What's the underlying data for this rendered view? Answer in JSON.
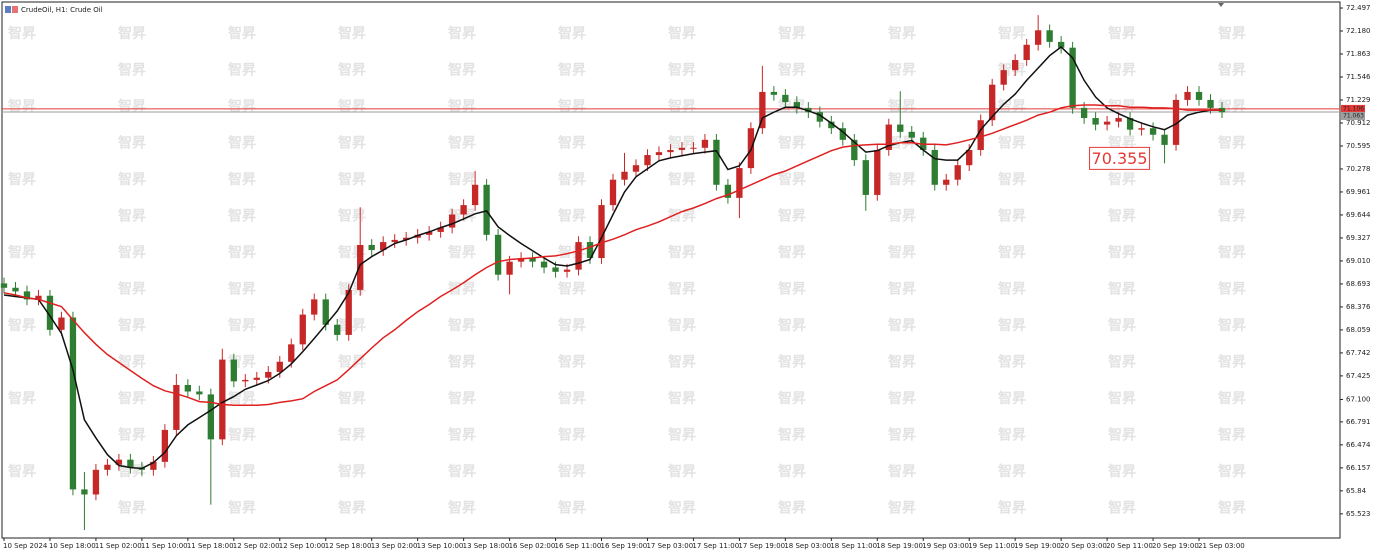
{
  "chart_data": {
    "type": "candlestick",
    "title": "CrudeOil, H1: Crude Oil",
    "watermark": "智昇",
    "categories": [
      "10 Sep 2024",
      null,
      null,
      null,
      "10 Sep 18:00",
      null,
      null,
      null,
      "11 Sep 02:00",
      null,
      null,
      null,
      "11 Sep 10:00",
      null,
      null,
      null,
      "11 Sep 18:00",
      null,
      null,
      null,
      "12 Sep 02:00",
      null,
      null,
      null,
      "12 Sep 10:00",
      null,
      null,
      null,
      "12 Sep 18:00",
      null,
      null,
      null,
      "13 Sep 02:00",
      null,
      null,
      null,
      "13 Sep 10:00",
      null,
      null,
      null,
      "13 Sep 18:00",
      null,
      null,
      null,
      "16 Sep 02:00",
      null,
      null,
      null,
      "16 Sep 11:00",
      null,
      null,
      null,
      "16 Sep 19:00",
      null,
      null,
      null,
      "17 Sep 03:00",
      null,
      null,
      null,
      "17 Sep 11:00",
      null,
      null,
      null,
      "17 Sep 19:00",
      null,
      null,
      null,
      "18 Sep 03:00",
      null,
      null,
      null,
      "18 Sep 11:00",
      null,
      null,
      null,
      "18 Sep 19:00",
      null,
      null,
      null,
      "19 Sep 03:00",
      null,
      null,
      null,
      "19 Sep 11:00",
      null,
      null,
      null,
      "19 Sep 19:00",
      null,
      null,
      null,
      "20 Sep 03:00",
      null,
      null,
      null,
      "20 Sep 11:00",
      null,
      null,
      null,
      "20 Sep 19:00",
      null,
      null,
      null,
      "21 Sep 03:00",
      null,
      null
    ],
    "open": [
      68.7,
      68.64,
      68.59,
      68.48,
      68.53,
      68.06,
      68.23,
      65.86,
      65.79,
      66.13,
      66.2,
      66.27,
      66.16,
      66.13,
      66.24,
      66.68,
      67.3,
      67.21,
      67.17,
      66.55,
      67.65,
      67.35,
      67.37,
      67.4,
      67.48,
      67.62,
      67.86,
      68.27,
      68.48,
      68.13,
      67.99,
      68.61,
      69.23,
      69.16,
      69.27,
      69.3,
      69.33,
      69.37,
      69.41,
      69.47,
      69.65,
      69.78,
      70.06,
      69.37,
      68.82,
      69.0,
      69.05,
      69.0,
      68.92,
      68.86,
      68.89,
      69.27,
      69.05,
      69.78,
      70.13,
      70.24,
      70.33,
      70.47,
      70.51,
      70.54,
      70.57,
      70.57,
      70.68,
      70.06,
      69.88,
      70.29,
      70.84,
      71.34,
      71.3,
      71.2,
      71.12,
      71.06,
      70.93,
      70.84,
      70.68,
      70.4,
      69.92,
      70.54,
      70.89,
      70.79,
      70.71,
      70.54,
      70.06,
      70.13,
      70.33,
      70.54,
      70.95,
      71.44,
      71.64,
      71.78,
      71.99,
      72.19,
      72.03,
      71.95,
      71.12,
      70.98,
      70.89,
      70.93,
      70.98,
      70.82,
      70.84,
      70.75,
      70.61,
      71.23,
      71.34,
      71.23,
      71.12
    ],
    "high": [
      68.78,
      68.72,
      68.67,
      68.61,
      68.61,
      68.31,
      68.31,
      66.1,
      66.21,
      66.28,
      66.35,
      66.35,
      66.24,
      66.32,
      66.76,
      67.45,
      67.38,
      67.29,
      67.25,
      67.8,
      67.73,
      67.45,
      67.48,
      67.56,
      67.7,
      67.94,
      68.35,
      68.56,
      68.56,
      68.21,
      68.69,
      69.75,
      69.31,
      69.35,
      69.38,
      69.41,
      69.45,
      69.49,
      69.55,
      69.73,
      69.86,
      70.25,
      70.14,
      69.45,
      69.08,
      69.13,
      69.13,
      69.08,
      69.0,
      68.97,
      69.35,
      69.35,
      69.86,
      70.21,
      70.5,
      70.41,
      70.55,
      70.59,
      70.62,
      70.65,
      70.65,
      70.76,
      70.76,
      70.14,
      70.37,
      70.92,
      71.7,
      71.42,
      71.38,
      71.28,
      71.2,
      71.14,
      71.01,
      70.92,
      70.76,
      70.48,
      70.62,
      70.97,
      71.35,
      70.87,
      70.79,
      70.62,
      70.21,
      70.41,
      70.62,
      71.03,
      71.52,
      71.72,
      71.86,
      72.07,
      72.4,
      72.27,
      72.11,
      72.03,
      71.2,
      71.06,
      71.01,
      71.06,
      71.06,
      70.92,
      70.92,
      70.83,
      71.31,
      71.42,
      71.42,
      71.31,
      71.2
    ],
    "low": [
      68.56,
      68.51,
      68.4,
      68.4,
      67.98,
      67.98,
      65.78,
      65.3,
      65.71,
      66.05,
      66.12,
      66.08,
      66.05,
      66.05,
      66.16,
      66.6,
      67.13,
      67.09,
      65.65,
      66.47,
      67.27,
      67.27,
      67.29,
      67.32,
      67.4,
      67.54,
      67.78,
      68.19,
      68.05,
      67.91,
      67.91,
      68.53,
      69.08,
      69.08,
      69.19,
      69.22,
      69.25,
      69.29,
      69.33,
      69.39,
      69.57,
      69.7,
      69.29,
      68.74,
      68.55,
      68.92,
      68.92,
      68.84,
      68.78,
      68.78,
      68.81,
      68.97,
      68.97,
      69.7,
      70.05,
      70.16,
      70.25,
      70.39,
      70.43,
      70.46,
      70.49,
      70.49,
      69.98,
      69.8,
      69.6,
      70.21,
      70.76,
      71.22,
      71.12,
      71.04,
      70.98,
      70.85,
      70.76,
      70.6,
      70.32,
      69.7,
      69.84,
      70.46,
      70.71,
      70.63,
      70.46,
      69.98,
      69.98,
      70.05,
      70.25,
      70.46,
      70.87,
      71.36,
      71.56,
      71.7,
      71.91,
      71.95,
      71.87,
      71.04,
      70.9,
      70.81,
      70.81,
      70.85,
      70.74,
      70.74,
      70.67,
      70.355,
      70.53,
      71.15,
      71.15,
      71.04,
      70.98
    ],
    "close": [
      68.64,
      68.59,
      68.48,
      68.53,
      68.06,
      68.23,
      65.86,
      65.79,
      66.13,
      66.2,
      66.27,
      66.16,
      66.13,
      66.24,
      66.68,
      67.3,
      67.21,
      67.17,
      66.55,
      67.65,
      67.35,
      67.37,
      67.4,
      67.48,
      67.62,
      67.86,
      68.27,
      68.48,
      68.13,
      67.99,
      68.61,
      69.23,
      69.16,
      69.27,
      69.3,
      69.33,
      69.37,
      69.41,
      69.47,
      69.65,
      69.78,
      70.06,
      69.37,
      68.82,
      69.0,
      69.05,
      69.0,
      68.92,
      68.86,
      68.89,
      69.27,
      69.05,
      69.78,
      70.13,
      70.24,
      70.33,
      70.47,
      70.51,
      70.54,
      70.57,
      70.57,
      70.68,
      70.06,
      69.88,
      70.29,
      70.84,
      71.34,
      71.3,
      71.2,
      71.12,
      71.06,
      70.93,
      70.84,
      70.68,
      70.4,
      69.92,
      70.54,
      70.89,
      70.79,
      70.71,
      70.54,
      70.06,
      70.13,
      70.33,
      70.54,
      70.95,
      71.44,
      71.64,
      71.78,
      71.99,
      72.19,
      72.03,
      71.95,
      71.12,
      70.98,
      70.89,
      70.93,
      70.98,
      70.82,
      70.84,
      70.75,
      70.61,
      71.23,
      71.34,
      71.23,
      71.12,
      71.06
    ],
    "up_color": "#c62828",
    "down_color": "#2e7d32",
    "lines": [
      {
        "color": "#111111",
        "values": [
          68.54,
          68.52,
          68.5,
          68.48,
          68.25,
          68.01,
          67.51,
          66.82,
          66.57,
          66.34,
          66.19,
          66.16,
          66.15,
          66.23,
          66.37,
          66.6,
          66.75,
          66.85,
          66.95,
          67.06,
          67.14,
          67.24,
          67.3,
          67.36,
          67.46,
          67.59,
          67.76,
          67.94,
          68.13,
          68.32,
          68.57,
          68.96,
          69.07,
          69.16,
          69.25,
          69.3,
          69.36,
          69.41,
          69.47,
          69.52,
          69.59,
          69.66,
          69.7,
          69.48,
          69.36,
          69.25,
          69.15,
          69.05,
          68.96,
          68.94,
          68.98,
          69.03,
          69.33,
          69.65,
          69.96,
          70.17,
          70.28,
          70.39,
          70.43,
          70.46,
          70.49,
          70.51,
          70.53,
          70.27,
          70.32,
          70.54,
          70.98,
          71.06,
          71.13,
          71.13,
          71.08,
          71.02,
          70.91,
          70.79,
          70.65,
          70.51,
          70.53,
          70.6,
          70.64,
          70.67,
          70.54,
          70.42,
          70.4,
          70.4,
          70.55,
          70.82,
          71.0,
          71.17,
          71.31,
          71.5,
          71.67,
          71.84,
          71.96,
          71.81,
          71.5,
          71.27,
          71.12,
          71.04,
          70.97,
          70.91,
          70.86,
          70.82,
          70.9,
          71.02,
          71.06,
          71.09,
          71.09
        ]
      },
      {
        "color": "#e02020",
        "values": [
          68.57,
          68.54,
          68.5,
          68.48,
          68.43,
          68.38,
          68.2,
          68.02,
          67.86,
          67.72,
          67.61,
          67.5,
          67.39,
          67.29,
          67.22,
          67.18,
          67.13,
          67.07,
          67.06,
          67.03,
          67.02,
          67.02,
          67.02,
          67.03,
          67.06,
          67.08,
          67.11,
          67.21,
          67.29,
          67.37,
          67.51,
          67.66,
          67.81,
          67.95,
          68.06,
          68.19,
          68.31,
          68.41,
          68.52,
          68.61,
          68.71,
          68.82,
          68.92,
          69.0,
          69.03,
          69.04,
          69.05,
          69.07,
          69.08,
          69.11,
          69.15,
          69.2,
          69.26,
          69.31,
          69.37,
          69.44,
          69.49,
          69.55,
          69.62,
          69.69,
          69.74,
          69.8,
          69.87,
          69.92,
          69.99,
          70.06,
          70.13,
          70.2,
          70.25,
          70.32,
          70.39,
          70.46,
          70.53,
          70.58,
          70.6,
          70.61,
          70.62,
          70.62,
          70.64,
          70.64,
          70.62,
          70.62,
          70.61,
          70.64,
          70.68,
          70.72,
          70.77,
          70.83,
          70.89,
          70.95,
          71.02,
          71.06,
          71.12,
          71.15,
          71.16,
          71.16,
          71.15,
          71.15,
          71.13,
          71.13,
          71.12,
          71.12,
          71.11,
          71.09,
          71.09,
          71.09,
          71.09
        ]
      }
    ],
    "price_lines": [
      {
        "value": 71.106,
        "color": "#e53935"
      },
      {
        "value": 71.063,
        "color": "#9e9e9e"
      }
    ],
    "annotation": "70.355",
    "ylim": [
      65.19,
      72.58
    ],
    "yticks": [
      72.497,
      {
        "value": 72.18,
        "label": "72.180"
      },
      71.863,
      71.546,
      71.229,
      70.912,
      70.595,
      70.278,
      69.961,
      69.644,
      69.327,
      {
        "value": 69.01,
        "label": "69.010"
      },
      68.693,
      68.376,
      68.059,
      67.742,
      67.425,
      {
        "value": 67.1,
        "label": "67.100"
      },
      66.791,
      66.474,
      66.157,
      65.84,
      65.523
    ]
  }
}
